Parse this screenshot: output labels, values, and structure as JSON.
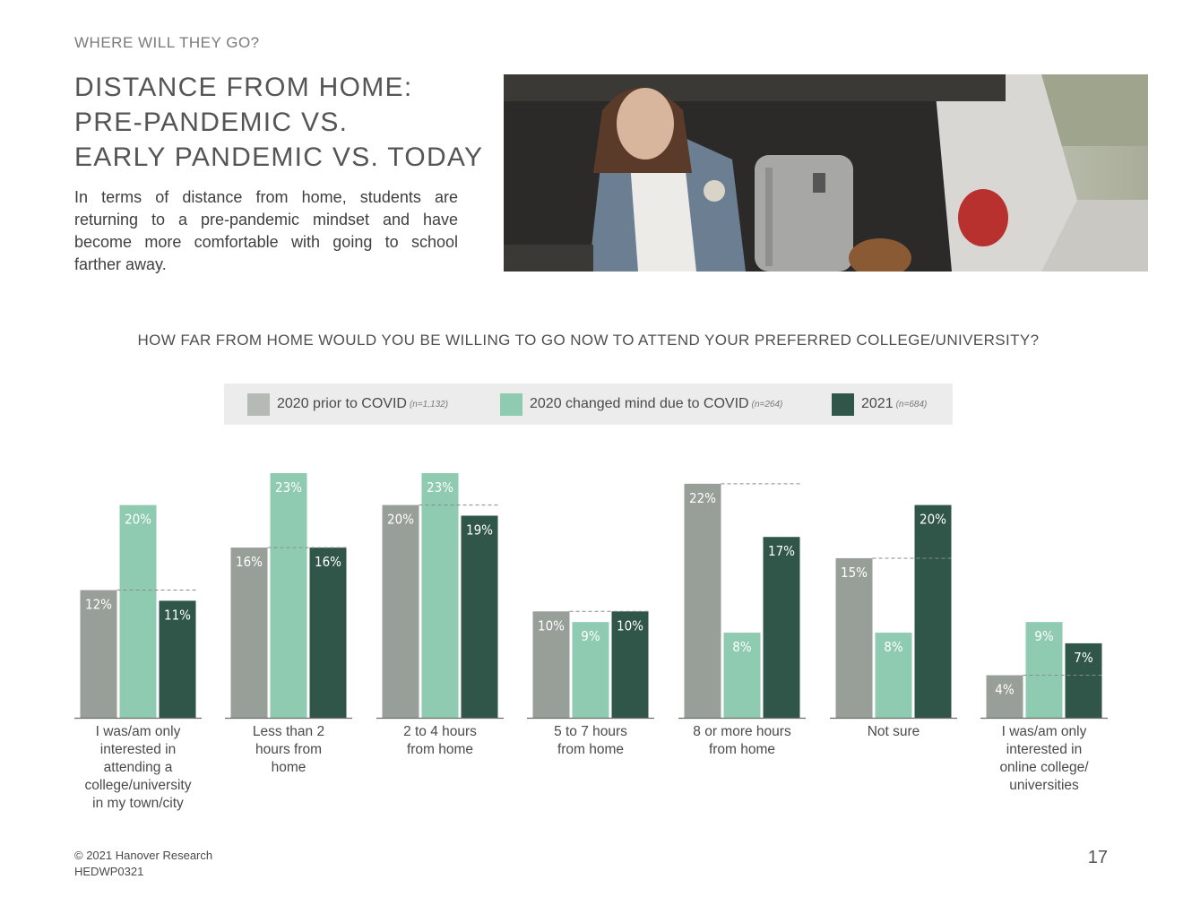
{
  "header": {
    "kicker": "WHERE WILL THEY GO?",
    "title_lines": [
      "DISTANCE FROM HOME:",
      "PRE-PANDEMIC VS.",
      "EARLY PANDEMIC VS. TODAY"
    ],
    "body": "In terms of distance from home, students are returning to a pre-pandemic mindset and have become more comfortable with going to school farther away."
  },
  "photo": {
    "subject": "student sitting in open car trunk with suitcase"
  },
  "chart_data": {
    "type": "bar",
    "title": "HOW FAR FROM HOME WOULD YOU BE WILLING TO GO NOW TO ATTEND YOUR PREFERRED COLLEGE/UNIVERSITY?",
    "categories": [
      "I was/am only interested in attending a college/university in my town/city",
      "Less than 2 hours from home",
      "2 to 4 hours from home",
      "5 to 7 hours from home",
      "8 or more hours from home",
      "Not sure",
      "I was/am only interested in online college/ universities"
    ],
    "category_lines": [
      [
        "I was/am only",
        "interested in",
        "attending a",
        "college/university",
        "in my town/city"
      ],
      [
        "Less than 2",
        "hours from",
        "home"
      ],
      [
        "2 to 4 hours",
        "from home"
      ],
      [
        "5 to 7 hours",
        "from home"
      ],
      [
        "8 or more hours",
        "from home"
      ],
      [
        "Not sure"
      ],
      [
        "I was/am only",
        "interested in",
        "online college/",
        "universities"
      ]
    ],
    "series": [
      {
        "name": "2020 prior to COVID",
        "n": "(n=1,132)",
        "color": "#989f98",
        "values": [
          12,
          16,
          20,
          10,
          22,
          15,
          4
        ]
      },
      {
        "name": "2020 changed mind due to COVID",
        "n": "(n=264)",
        "color": "#8ecbb1",
        "values": [
          20,
          23,
          23,
          9,
          8,
          8,
          9
        ]
      },
      {
        "name": "2021",
        "n": "(n=684)",
        "color": "#30564a",
        "values": [
          11,
          16,
          19,
          10,
          17,
          20,
          7
        ]
      }
    ],
    "value_suffix": "%",
    "reference_line": "dashed line at 2020 prior to COVID value",
    "ylim": [
      0,
      25
    ],
    "legend_position": "top",
    "grid": false
  },
  "footer": {
    "copyright": "© 2021 Hanover Research",
    "code": "HEDWP0321",
    "page": "17"
  }
}
